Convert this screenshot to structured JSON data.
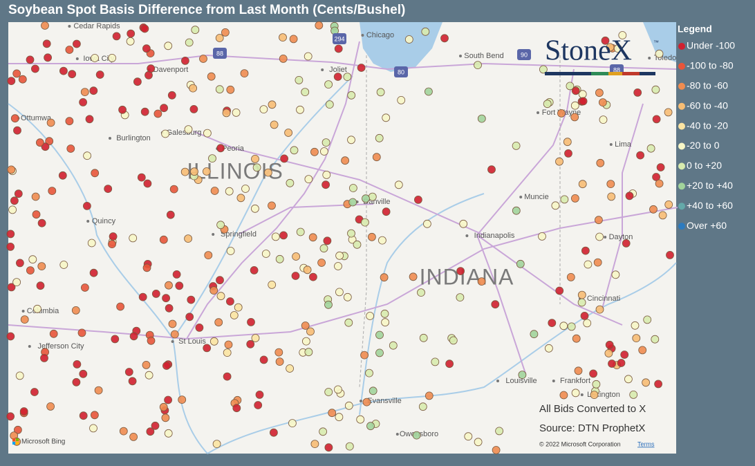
{
  "title": "Soybean Spot Basis Difference from Last Month (Cents/Bushel)",
  "legend": {
    "title": "Legend",
    "items": [
      {
        "label": "Under -100",
        "color": "#d0202f"
      },
      {
        "label": "-100 to -80",
        "color": "#e8553a"
      },
      {
        "label": "-80 to -60",
        "color": "#f08c50"
      },
      {
        "label": "-60 to -40",
        "color": "#f7bd74"
      },
      {
        "label": "-40 to -20",
        "color": "#fbe4a2"
      },
      {
        "label": "-20 to 0",
        "color": "#f7f6c6"
      },
      {
        "label": "0 to +20",
        "color": "#d8ebae"
      },
      {
        "label": "+20 to +40",
        "color": "#a2d49b"
      },
      {
        "label": "+40 to +60",
        "color": "#64a9a9"
      },
      {
        "label": "Over +60",
        "color": "#2d7bbf"
      }
    ]
  },
  "map": {
    "states": [
      "ILLINOIS",
      "INDIANA"
    ],
    "cities": [
      "Cedar Rapids",
      "Iowa City",
      "Davenport",
      "Ottumwa",
      "Galesburg",
      "Burlington",
      "Peoria",
      "Quincy",
      "Springfield",
      "Columbia",
      "Jefferson City",
      "St Louis",
      "Chicago",
      "Joliet",
      "South Bend",
      "Fort Wayne",
      "Muncie",
      "Indianapolis",
      "Danville",
      "Dayton",
      "Cincinnati",
      "Louisville",
      "Frankfort",
      "Lexington",
      "Evansville",
      "Owensboro",
      "Toledo",
      "Lima"
    ],
    "highways": [
      "88",
      "294",
      "80",
      "90",
      "88"
    ],
    "notes": [
      "All Bids Converted to X",
      "Source: DTN ProphetX"
    ],
    "copyright": "© 2022 Microsoft Corporation",
    "terms": "Terms",
    "attribution": "Microsoft Bing",
    "logo": "StoneX",
    "logo_mark": "™"
  }
}
